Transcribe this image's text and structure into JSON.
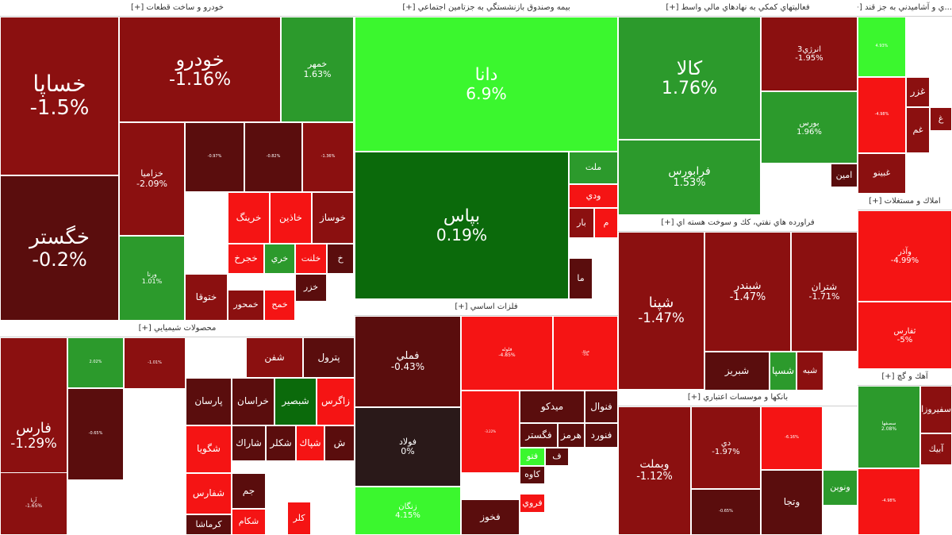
{
  "chart_data": {
    "type": "treemap",
    "colors": {
      "strong_up": "#3bf72e",
      "up": "#2c9a2c",
      "mild_up": "#0b6a0b",
      "flat": "#2a1919",
      "mild_down": "#5a0d0d",
      "down": "#8b1010",
      "strong_down": "#f51414"
    },
    "sectors": [
      {
        "title": "خودرو و ساخت قطعات [+]",
        "stocks": [
          {
            "symbol": "خساپا",
            "change": "-1.5%"
          },
          {
            "symbol": "خگستر",
            "change": "-0.2%"
          },
          {
            "symbol": "خودرو",
            "change": "-1.16%"
          },
          {
            "symbol": "خمهر",
            "change": "1.63%"
          },
          {
            "symbol": "خزاميا",
            "change": "-2.09%"
          },
          {
            "symbol": "",
            "change": "-0.97%"
          },
          {
            "symbol": "",
            "change": "-0.82%"
          },
          {
            "symbol": "",
            "change": "-1.36%"
          },
          {
            "symbol": "ورنا",
            "change": "1.01%"
          },
          {
            "symbol": "خرينگ",
            "change": ""
          },
          {
            "symbol": "خاذين",
            "change": ""
          },
          {
            "symbol": "خوساز",
            "change": ""
          },
          {
            "symbol": "خلنت",
            "change": ""
          },
          {
            "symbol": "خجرخ",
            "change": ""
          },
          {
            "symbol": "خري",
            "change": ""
          },
          {
            "symbol": "خ",
            "change": ""
          },
          {
            "symbol": "ختوقا",
            "change": ""
          },
          {
            "symbol": "خمحور",
            "change": ""
          },
          {
            "symbol": "خمح",
            "change": ""
          },
          {
            "symbol": "خزر",
            "change": ""
          }
        ]
      },
      {
        "title": "محصولات شيميايي [+]",
        "stocks": [
          {
            "symbol": "فارس",
            "change": "-1.29%"
          },
          {
            "symbol": "",
            "change": "2.02%"
          },
          {
            "symbol": "",
            "change": "-0.65%"
          },
          {
            "symbol": "آريا",
            "change": "-1.65%"
          },
          {
            "symbol": "",
            "change": "-1.01%"
          },
          {
            "symbol": "شفن",
            "change": ""
          },
          {
            "symbol": "پترول",
            "change": ""
          },
          {
            "symbol": "پارسان",
            "change": ""
          },
          {
            "symbol": "خراسان",
            "change": ""
          },
          {
            "symbol": "شبصير",
            "change": ""
          },
          {
            "symbol": "زاگرس",
            "change": ""
          },
          {
            "symbol": "شگويا",
            "change": ""
          },
          {
            "symbol": "شاراك",
            "change": ""
          },
          {
            "symbol": "شكلر",
            "change": ""
          },
          {
            "symbol": "شفارس",
            "change": ""
          },
          {
            "symbol": "جم",
            "change": ""
          },
          {
            "symbol": "كرماشا",
            "change": ""
          },
          {
            "symbol": "شكام",
            "change": ""
          },
          {
            "symbol": "شپاك",
            "change": ""
          },
          {
            "symbol": "ش",
            "change": ""
          },
          {
            "symbol": "كلر",
            "change": ""
          }
        ]
      },
      {
        "title": "بيمه وصندوق بازنشستگي به جزتامين اجتماعي [+]",
        "stocks": [
          {
            "symbol": "دانا",
            "change": "6.9%"
          },
          {
            "symbol": "بپاس",
            "change": "0.19%"
          },
          {
            "symbol": "ملت",
            "change": ""
          },
          {
            "symbol": "ودي",
            "change": ""
          },
          {
            "symbol": "بار",
            "change": ""
          },
          {
            "symbol": "م",
            "change": ""
          },
          {
            "symbol": "ما",
            "change": ""
          }
        ]
      },
      {
        "title": "فلزات اساسي [+]",
        "stocks": [
          {
            "symbol": "فملي",
            "change": "-0.43%"
          },
          {
            "symbol": "فلوله",
            "change": "-4.85%"
          },
          {
            "symbol": "فنيكل",
            "change": "-5%"
          },
          {
            "symbol": "فولاد",
            "change": "0%"
          },
          {
            "symbol": "",
            "change": "-3.22%"
          },
          {
            "symbol": "ميدكو",
            "change": ""
          },
          {
            "symbol": "فنوال",
            "change": ""
          },
          {
            "symbol": "فگستر",
            "change": ""
          },
          {
            "symbol": "هرمز",
            "change": ""
          },
          {
            "symbol": "فنورد",
            "change": ""
          },
          {
            "symbol": "زنگان",
            "change": "4.15%"
          },
          {
            "symbol": "فتو",
            "change": ""
          },
          {
            "symbol": "ف",
            "change": ""
          },
          {
            "symbol": "كاوه",
            "change": ""
          },
          {
            "symbol": "فخوز",
            "change": ""
          },
          {
            "symbol": "فروي",
            "change": ""
          }
        ]
      },
      {
        "title": "فعاليتهاي كمكي به نهادهاي مالي واسط [+]",
        "stocks": [
          {
            "symbol": "كالا",
            "change": "1.76%"
          },
          {
            "symbol": "انرژي3",
            "change": "-1.95%"
          },
          {
            "symbol": "بورس",
            "change": "1.96%"
          },
          {
            "symbol": "فرابورس",
            "change": "1.53%"
          },
          {
            "symbol": "امين",
            "change": ""
          }
        ]
      },
      {
        "title": "فراورده هاي نفتي، كك و سوخت هسته اي [+]",
        "stocks": [
          {
            "symbol": "شپنا",
            "change": "-1.47%"
          },
          {
            "symbol": "شبندر",
            "change": "-1.47%"
          },
          {
            "symbol": "شتران",
            "change": "-1.71%"
          },
          {
            "symbol": "شبريز",
            "change": ""
          },
          {
            "symbol": "شسپا",
            "change": ""
          },
          {
            "symbol": "شبه",
            "change": ""
          }
        ]
      },
      {
        "title": "بانكها و موسسات اعتباري [+]",
        "stocks": [
          {
            "symbol": "وبملت",
            "change": "-1.12%"
          },
          {
            "symbol": "دي",
            "change": "-1.97%"
          },
          {
            "symbol": "",
            "change": "-6.16%"
          },
          {
            "symbol": "",
            "change": "-0.65%"
          },
          {
            "symbol": "وتجا",
            "change": ""
          },
          {
            "symbol": "ونوين",
            "change": ""
          }
        ]
      },
      {
        "title": "...ي و آشاميدني به جز قند [+]",
        "stocks": [
          {
            "symbol": "",
            "change": "4.93%"
          },
          {
            "symbol": "غزر",
            "change": ""
          },
          {
            "symbol": "",
            "change": "-4.98%"
          },
          {
            "symbol": "غبينو",
            "change": ""
          },
          {
            "symbol": "غم",
            "change": ""
          },
          {
            "symbol": "غ",
            "change": ""
          }
        ]
      },
      {
        "title": "املاك و مستغلات [+]",
        "stocks": [
          {
            "symbol": "وآذر",
            "change": "-4.99%"
          },
          {
            "symbol": "ثفارس",
            "change": "-5%"
          }
        ]
      },
      {
        "title": "آهك و گچ [+]",
        "stocks": [
          {
            "symbol": "سصفها",
            "change": "2.08%"
          },
          {
            "symbol": "سفيروزا",
            "change": ""
          },
          {
            "symbol": "آبيك",
            "change": ""
          },
          {
            "symbol": "",
            "change": "-4.98%"
          }
        ]
      }
    ]
  }
}
